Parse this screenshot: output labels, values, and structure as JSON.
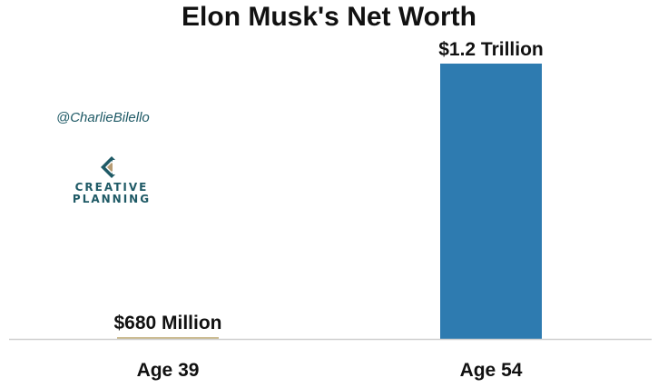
{
  "chart_data": {
    "type": "bar",
    "title": "Elon Musk's Net Worth",
    "categories": [
      "Age 39",
      "Age 54"
    ],
    "values": [
      0.00068,
      1.2
    ],
    "value_units": "Trillion USD",
    "data_labels": [
      "$680 Million",
      "$1.2 Trillion"
    ],
    "bar_colors": [
      "#c9b88a",
      "#2e7bb0"
    ],
    "ylim": [
      0,
      1.2
    ],
    "grid": false,
    "legend": "none"
  },
  "branding": {
    "handle": "@CharlieBilello",
    "logo_lines": [
      "CREATIVE",
      "PLANNING"
    ],
    "logo_color": "#1f5a66",
    "logo_accent": "#b79c74"
  }
}
